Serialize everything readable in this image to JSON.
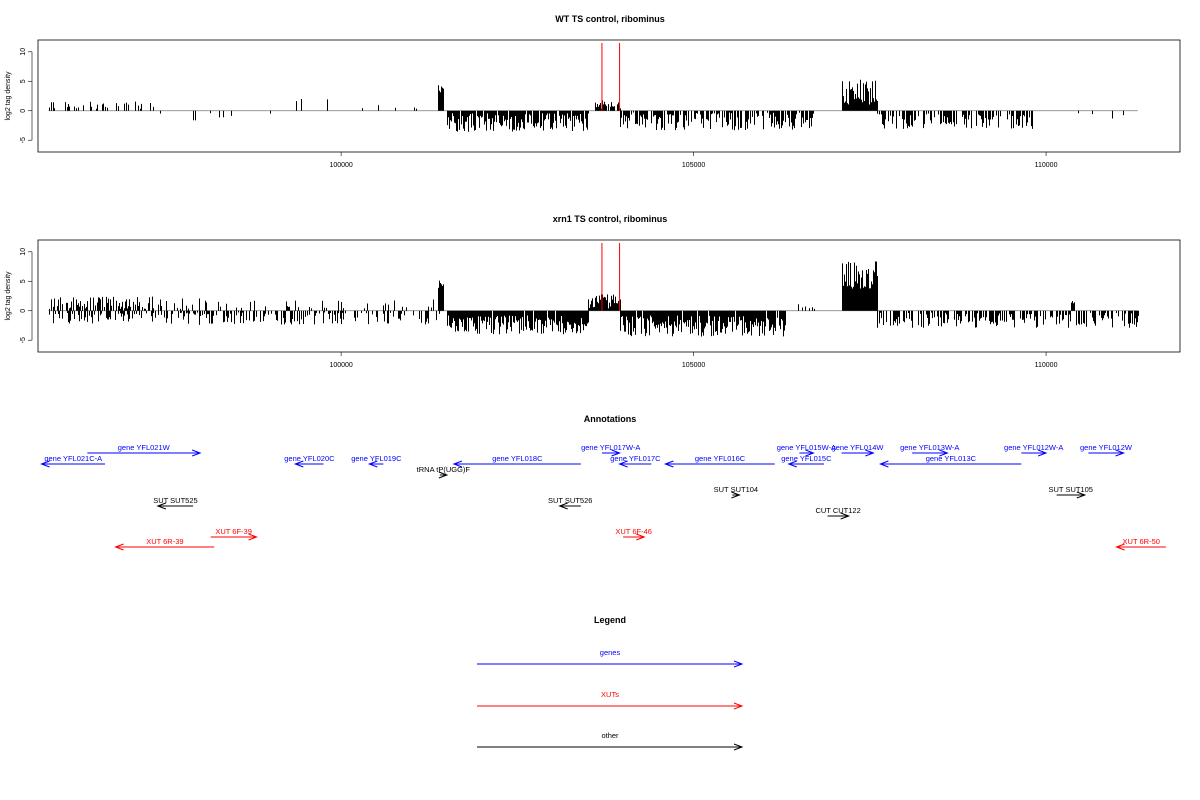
{
  "panels": [
    {
      "title": "WT TS control, ribominus",
      "ylabel": "log2 tag density"
    },
    {
      "title": "xrn1 TS control, ribominus",
      "ylabel": "log2 tag density"
    }
  ],
  "annotations_title": "Annotations",
  "legend_title": "Legend",
  "colors": {
    "genes": "#0000ff",
    "XUTs": "#ff0000",
    "other": "#000000",
    "marker": "#ff0000"
  },
  "chart_data": [
    {
      "type": "bar",
      "title": "WT TS control, ribominus",
      "xlabel": "",
      "ylabel": "log2 tag density",
      "xlim": [
        95700,
        111900
      ],
      "ylim": [
        -7,
        12
      ],
      "yticks": [
        -5,
        0,
        5,
        10
      ],
      "xticks": [
        100000,
        105000,
        110000
      ],
      "grid": false,
      "red_markers": [
        103700,
        103950
      ],
      "regions": [
        {
          "from": 95850,
          "to": 97400,
          "sign": 1,
          "mean": 1.0,
          "amp": 1.0,
          "density": 0.25,
          "seed": 11
        },
        {
          "from": 97400,
          "to": 99000,
          "sign": -1,
          "mean": 1.0,
          "amp": 1.2,
          "density": 0.06,
          "seed": 12
        },
        {
          "from": 99000,
          "to": 101400,
          "sign": 1,
          "mean": 0.8,
          "amp": 1.5,
          "density": 0.04,
          "seed": 13
        },
        {
          "from": 101380,
          "to": 101450,
          "sign": 1,
          "mean": 4.2,
          "amp": 1.3,
          "density": 1.0,
          "seed": 14
        },
        {
          "from": 101500,
          "to": 103500,
          "sign": -1,
          "mean": 2.0,
          "amp": 1.6,
          "density": 0.9,
          "seed": 15
        },
        {
          "from": 103600,
          "to": 103950,
          "sign": 1,
          "mean": 1.0,
          "amp": 0.8,
          "density": 0.8,
          "seed": 16
        },
        {
          "from": 103950,
          "to": 106700,
          "sign": -1,
          "mean": 1.8,
          "amp": 1.5,
          "density": 0.7,
          "seed": 17
        },
        {
          "from": 107100,
          "to": 107600,
          "sign": 1,
          "mean": 3.2,
          "amp": 2.2,
          "density": 1.0,
          "seed": 18
        },
        {
          "from": 107600,
          "to": 109800,
          "sign": -1,
          "mean": 1.8,
          "amp": 1.3,
          "density": 0.55,
          "seed": 19
        },
        {
          "from": 109800,
          "to": 111300,
          "sign": -1,
          "mean": 0.8,
          "amp": 0.8,
          "density": 0.05,
          "seed": 20
        }
      ]
    },
    {
      "type": "bar",
      "title": "xrn1 TS control, ribominus",
      "xlabel": "",
      "ylabel": "log2 tag density",
      "xlim": [
        95700,
        111900
      ],
      "ylim": [
        -7,
        12
      ],
      "yticks": [
        -5,
        0,
        5,
        10
      ],
      "xticks": [
        100000,
        105000,
        110000
      ],
      "grid": false,
      "red_markers": [
        103700,
        103950
      ],
      "regions": [
        {
          "from": 95850,
          "to": 97400,
          "sign": 1,
          "mean": 1.2,
          "amp": 1.2,
          "density": 0.55,
          "seed": 31
        },
        {
          "from": 95850,
          "to": 97400,
          "sign": -1,
          "mean": 1.0,
          "amp": 1.2,
          "density": 0.45,
          "seed": 32
        },
        {
          "from": 97400,
          "to": 101400,
          "sign": -1,
          "mean": 1.2,
          "amp": 1.2,
          "density": 0.4,
          "seed": 33
        },
        {
          "from": 97400,
          "to": 101400,
          "sign": 1,
          "mean": 0.8,
          "amp": 1.3,
          "density": 0.18,
          "seed": 34
        },
        {
          "from": 101380,
          "to": 101450,
          "sign": 1,
          "mean": 4.0,
          "amp": 1.2,
          "density": 1.0,
          "seed": 35
        },
        {
          "from": 101500,
          "to": 103500,
          "sign": -1,
          "mean": 2.4,
          "amp": 1.6,
          "density": 0.95,
          "seed": 36
        },
        {
          "from": 103500,
          "to": 103950,
          "sign": 1,
          "mean": 1.6,
          "amp": 1.2,
          "density": 0.9,
          "seed": 37
        },
        {
          "from": 103950,
          "to": 106300,
          "sign": -1,
          "mean": 2.6,
          "amp": 1.8,
          "density": 0.95,
          "seed": 38
        },
        {
          "from": 106300,
          "to": 107100,
          "sign": 1,
          "mean": 0.6,
          "amp": 0.6,
          "density": 0.05,
          "seed": 39
        },
        {
          "from": 107100,
          "to": 107600,
          "sign": 1,
          "mean": 6.0,
          "amp": 2.5,
          "density": 1.0,
          "seed": 40
        },
        {
          "from": 107600,
          "to": 111300,
          "sign": -1,
          "mean": 1.6,
          "amp": 1.3,
          "density": 0.55,
          "seed": 41
        },
        {
          "from": 110350,
          "to": 110400,
          "sign": 1,
          "mean": 2.2,
          "amp": 1.0,
          "density": 1.0,
          "seed": 42
        }
      ]
    }
  ],
  "annotations": [
    {
      "label": "gene YFL021W",
      "start": 96400,
      "end": 98000,
      "strand": "+",
      "kind": "genes",
      "row": 0
    },
    {
      "label": "gene YFL021C-A",
      "start": 95750,
      "end": 96650,
      "strand": "-",
      "kind": "genes",
      "row": 1
    },
    {
      "label": "gene YFL020C",
      "start": 99350,
      "end": 99750,
      "strand": "-",
      "kind": "genes",
      "row": 1
    },
    {
      "label": "gene YFL019C",
      "start": 100400,
      "end": 100600,
      "strand": "-",
      "kind": "genes",
      "row": 1
    },
    {
      "label": "tRNA tP(UGG)F",
      "start": 101400,
      "end": 101500,
      "strand": "+",
      "kind": "other",
      "row": 2
    },
    {
      "label": "gene YFL018C",
      "start": 101600,
      "end": 103400,
      "strand": "-",
      "kind": "genes",
      "row": 1
    },
    {
      "label": "gene YFL017W-A",
      "start": 103700,
      "end": 103950,
      "strand": "+",
      "kind": "genes",
      "row": 0
    },
    {
      "label": "gene YFL017C",
      "start": 103950,
      "end": 104400,
      "strand": "-",
      "kind": "genes",
      "row": 1
    },
    {
      "label": "gene YFL016C",
      "start": 104600,
      "end": 106150,
      "strand": "-",
      "kind": "genes",
      "row": 1
    },
    {
      "label": "gene YFL015W-A",
      "start": 106500,
      "end": 106700,
      "strand": "+",
      "kind": "genes",
      "row": 0
    },
    {
      "label": "gene YFL015C",
      "start": 106350,
      "end": 106850,
      "strand": "-",
      "kind": "genes",
      "row": 1
    },
    {
      "label": "gene YFL014W",
      "start": 107100,
      "end": 107550,
      "strand": "+",
      "kind": "genes",
      "row": 0
    },
    {
      "label": "gene YFL013W-A",
      "start": 108100,
      "end": 108600,
      "strand": "+",
      "kind": "genes",
      "row": 0
    },
    {
      "label": "gene YFL013C",
      "start": 107650,
      "end": 109650,
      "strand": "-",
      "kind": "genes",
      "row": 1
    },
    {
      "label": "gene YFL012W-A",
      "start": 109650,
      "end": 110000,
      "strand": "+",
      "kind": "genes",
      "row": 0
    },
    {
      "label": "gene YFL012W",
      "start": 110600,
      "end": 111100,
      "strand": "+",
      "kind": "genes",
      "row": 0
    },
    {
      "label": "SUT SUT104",
      "start": 105550,
      "end": 105650,
      "strand": "+",
      "kind": "other",
      "row": 3
    },
    {
      "label": "SUT SUT105",
      "start": 110150,
      "end": 110550,
      "strand": "+",
      "kind": "other",
      "row": 3
    },
    {
      "label": "SUT SUT525",
      "start": 97400,
      "end": 97900,
      "strand": "-",
      "kind": "other",
      "row": 4
    },
    {
      "label": "SUT SUT526",
      "start": 103100,
      "end": 103400,
      "strand": "-",
      "kind": "other",
      "row": 4
    },
    {
      "label": "CUT CUT122",
      "start": 106900,
      "end": 107200,
      "strand": "+",
      "kind": "other",
      "row": 5
    },
    {
      "label": "XUT 6F-39",
      "start": 98150,
      "end": 98800,
      "strand": "+",
      "kind": "XUTs",
      "row": 6
    },
    {
      "label": "XUT 6F-46",
      "start": 104000,
      "end": 104300,
      "strand": "+",
      "kind": "XUTs",
      "row": 6
    },
    {
      "label": "XUT 6R-39",
      "start": 96800,
      "end": 98200,
      "strand": "-",
      "kind": "XUTs",
      "row": 7
    },
    {
      "label": "XUT 6R-50",
      "start": 111000,
      "end": 111700,
      "strand": "-",
      "kind": "XUTs",
      "row": 7
    }
  ],
  "legend": [
    {
      "label": "genes",
      "kind": "genes"
    },
    {
      "label": "XUTs",
      "kind": "XUTs"
    },
    {
      "label": "other",
      "kind": "other"
    }
  ]
}
